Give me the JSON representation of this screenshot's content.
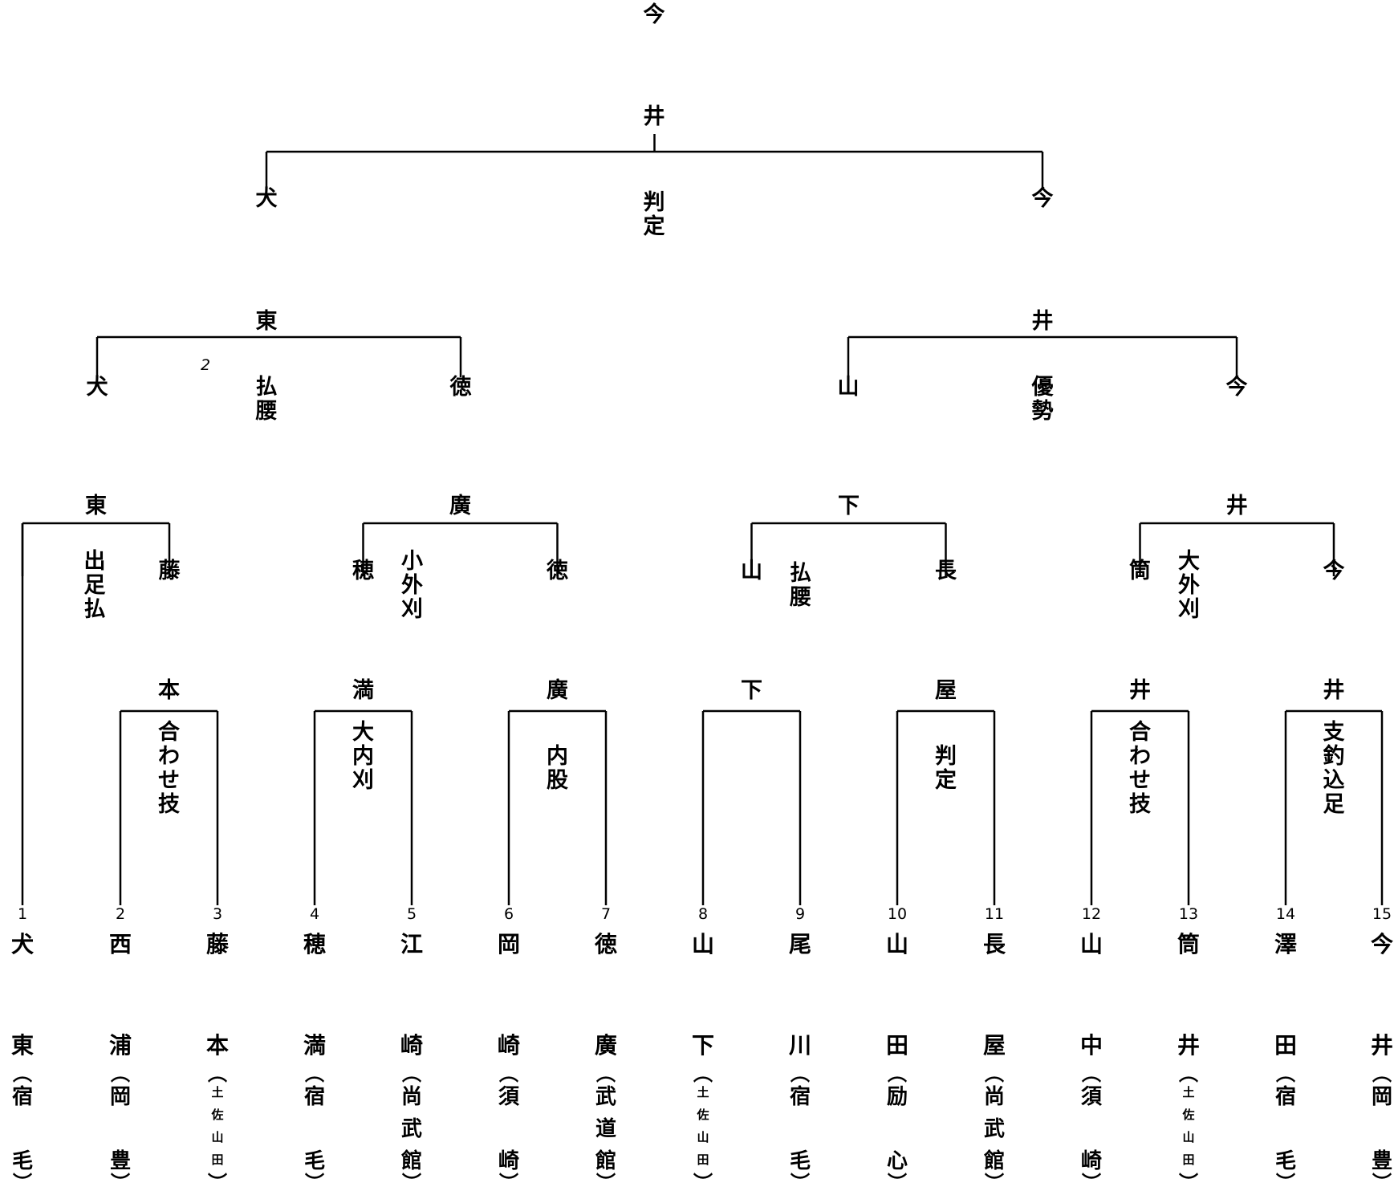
{
  "players": [
    {
      "seed": "1",
      "surname": "犬",
      "given": "東",
      "school": [
        "宿",
        "毛"
      ]
    },
    {
      "seed": "2",
      "surname": "西",
      "given": "浦",
      "school": [
        "岡",
        "豊"
      ]
    },
    {
      "seed": "3",
      "surname": "藤",
      "given": "本",
      "school": [
        "土",
        "佐",
        "山",
        "田"
      ]
    },
    {
      "seed": "4",
      "surname": "穂",
      "given": "満",
      "school": [
        "宿",
        "毛"
      ]
    },
    {
      "seed": "5",
      "surname": "江",
      "given": "崎",
      "school": [
        "尚",
        "武",
        "館"
      ]
    },
    {
      "seed": "6",
      "surname": "岡",
      "given": "崎",
      "school": [
        "須",
        "崎"
      ]
    },
    {
      "seed": "7",
      "surname": "徳",
      "given": "廣",
      "school": [
        "武",
        "道",
        "館"
      ]
    },
    {
      "seed": "8",
      "surname": "山",
      "given": "下",
      "school": [
        "土",
        "佐",
        "山",
        "田"
      ]
    },
    {
      "seed": "9",
      "surname": "尾",
      "given": "川",
      "school": [
        "宿",
        "毛"
      ]
    },
    {
      "seed": "10",
      "surname": "山",
      "given": "田",
      "school": [
        "励",
        "心"
      ]
    },
    {
      "seed": "11",
      "surname": "長",
      "given": "屋",
      "school": [
        "尚",
        "武",
        "館"
      ]
    },
    {
      "seed": "12",
      "surname": "山",
      "given": "中",
      "school": [
        "須",
        "崎"
      ]
    },
    {
      "seed": "13",
      "surname": "筒",
      "given": "井",
      "school": [
        "土",
        "佐",
        "山",
        "田"
      ]
    },
    {
      "seed": "14",
      "surname": "澤",
      "given": "田",
      "school": [
        "宿",
        "毛"
      ]
    },
    {
      "seed": "15",
      "surname": "今",
      "given": "井",
      "school": [
        "岡",
        "豊"
      ]
    }
  ],
  "round1": [
    {
      "winner": "本",
      "technique": "合わせ技"
    },
    {
      "winner": "満",
      "technique": "大内刈"
    },
    {
      "winner": "廣",
      "technique": "内股"
    },
    {
      "winner": "下",
      "technique": ""
    },
    {
      "winner": "屋",
      "technique": "判定"
    },
    {
      "winner": "井",
      "technique": "合わせ技"
    },
    {
      "winner": "井",
      "technique": "支釣込足"
    }
  ],
  "round2": [
    {
      "winner": "東",
      "left": "犬",
      "right": "藤",
      "technique": "出足払"
    },
    {
      "winner": "廣",
      "left": "穂",
      "right": "徳",
      "technique": "小外刈"
    },
    {
      "winner": "下",
      "left": "山",
      "right": "長",
      "technique": "払腰"
    },
    {
      "winner": "井",
      "left": "筒",
      "right": "今",
      "technique": "大外刈"
    }
  ],
  "round3": [
    {
      "winner": "東",
      "left": "犬",
      "right": "徳",
      "technique": "払腰",
      "note": "2"
    },
    {
      "winner": "井",
      "left": "山",
      "right": "今",
      "technique": "優勢"
    }
  ],
  "final": {
    "winner": "井",
    "left": "犬",
    "right": "今",
    "technique": "判定"
  },
  "champion": {
    "top": "今",
    "bottom": "井"
  }
}
